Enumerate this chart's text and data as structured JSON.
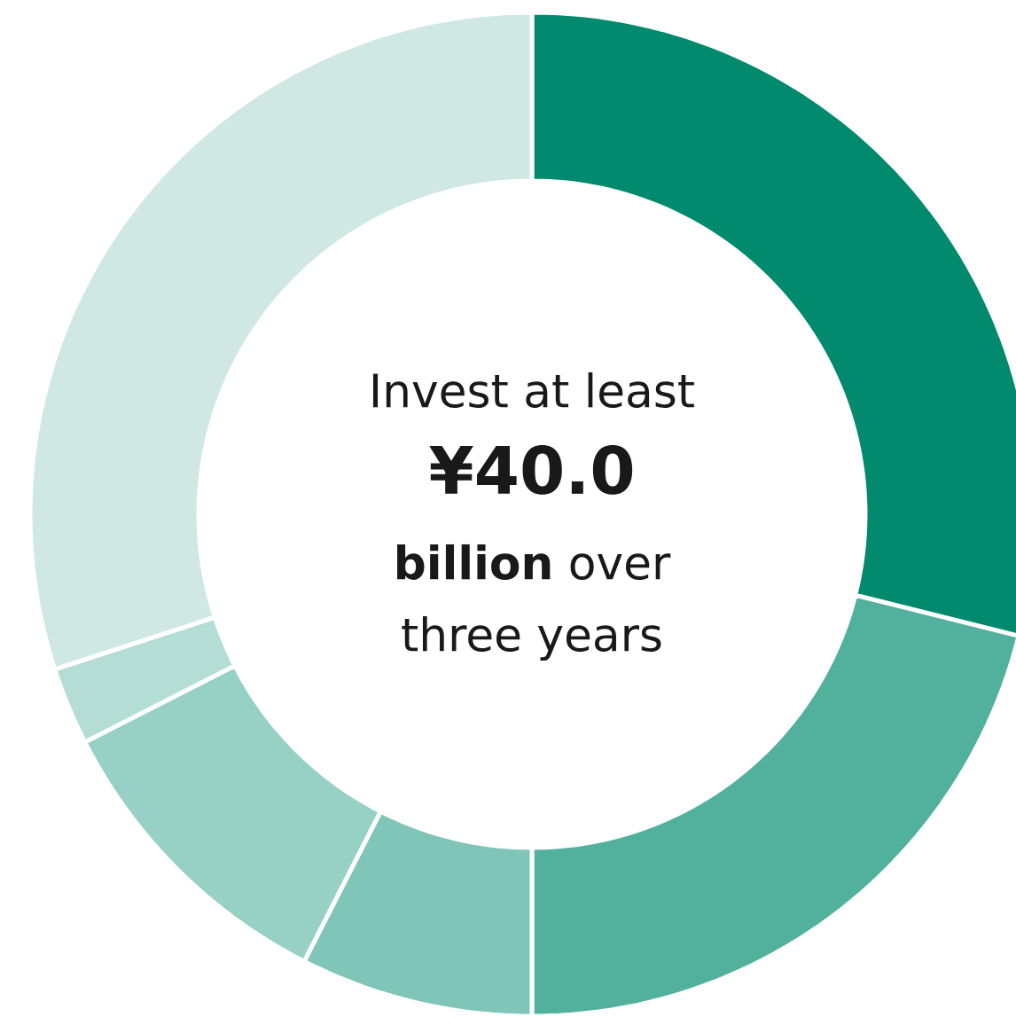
{
  "chart_data": {
    "type": "donut",
    "categories": [
      null,
      null,
      null,
      null,
      null,
      null
    ],
    "values": [
      28.9,
      21.1,
      7.5,
      10.0,
      2.5,
      30.0
    ],
    "colors": [
      "#028a6f",
      "#52b19d",
      "#80c6b8",
      "#97d0c5",
      "#b3ddd5",
      "#cfe8e3"
    ],
    "annotations": [
      "Invest at least",
      "¥40.0",
      "**billion** over",
      "three years"
    ]
  }
}
